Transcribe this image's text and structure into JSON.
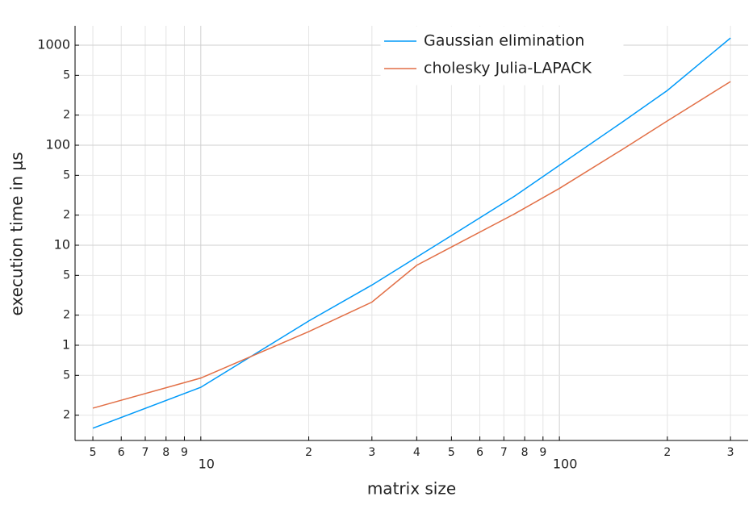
{
  "chart_data": {
    "type": "line",
    "x_label": "matrix size",
    "y_label": "execution time in μs",
    "xlog": true,
    "ylog": true,
    "grid": true,
    "legend_position": "top-right",
    "xlim": [
      4.46,
      336
    ],
    "ylim": [
      0.1117,
      1563
    ],
    "xticks": [
      {
        "value": 5,
        "label": "5"
      },
      {
        "value": 6,
        "label": "6"
      },
      {
        "value": 7,
        "label": "7"
      },
      {
        "value": 8,
        "label": "8"
      },
      {
        "value": 9,
        "label": "9"
      },
      10,
      {
        "value": 20,
        "label": "2"
      },
      {
        "value": 30,
        "label": "3"
      },
      {
        "value": 40,
        "label": "4"
      },
      {
        "value": 50,
        "label": "5"
      },
      {
        "value": 60,
        "label": "6"
      },
      {
        "value": 70,
        "label": "7"
      },
      {
        "value": 80,
        "label": "8"
      },
      {
        "value": 90,
        "label": "9"
      },
      100,
      {
        "value": 200,
        "label": "2"
      },
      {
        "value": 300,
        "label": "3"
      }
    ],
    "yticks": [
      {
        "value": 0.2,
        "label": "2"
      },
      {
        "value": 0.5,
        "label": "5"
      },
      1,
      {
        "value": 2,
        "label": "2"
      },
      {
        "value": 5,
        "label": "5"
      },
      10,
      {
        "value": 20,
        "label": "2"
      },
      {
        "value": 50,
        "label": "5"
      },
      100,
      {
        "value": 200,
        "label": "2"
      },
      {
        "value": 500,
        "label": "5"
      },
      1000
    ],
    "x": [
      5,
      10,
      20,
      30,
      40,
      50,
      75,
      100,
      150,
      200,
      300
    ],
    "series": [
      {
        "name": "Gaussian elimination",
        "color": "#009af9",
        "values": [
          0.148,
          0.38,
          1.75,
          4.0,
          7.6,
          12.5,
          31,
          63,
          171,
          353,
          1180
        ]
      },
      {
        "name": "cholesky Julia-LAPACK",
        "color": "#e26f46",
        "values": [
          0.235,
          0.47,
          1.37,
          2.7,
          6.3,
          9.6,
          20.6,
          37,
          91,
          175,
          433
        ]
      }
    ]
  }
}
